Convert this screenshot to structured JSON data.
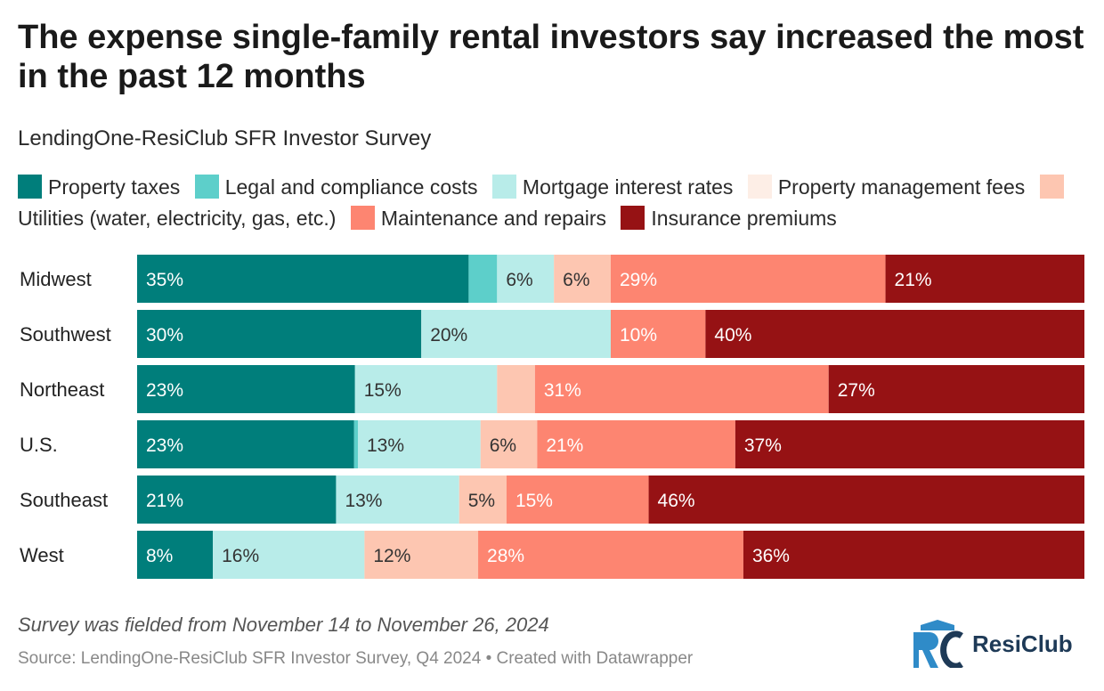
{
  "header": {
    "title": "The expense single-family rental investors say increased the most in the past 12 months",
    "subtitle": "LendingOne-ResiClub SFR Investor Survey"
  },
  "legend": [
    {
      "label": "Property taxes",
      "color": "#007e7b"
    },
    {
      "label": "Legal and compliance costs",
      "color": "#5dcfca"
    },
    {
      "label": "Mortgage interest rates",
      "color": "#b8ece9"
    },
    {
      "label": "Property management fees",
      "color": "#fdeee6"
    },
    {
      "label": "Utilities (water, electricity, gas, etc.)",
      "color": "#fdc6b1"
    },
    {
      "label": "Maintenance and repairs",
      "color": "#fd8571"
    },
    {
      "label": "Insurance premiums",
      "color": "#961214"
    }
  ],
  "chart_data": {
    "type": "bar",
    "orientation": "horizontal-stacked",
    "categories": [
      "Midwest",
      "Southwest",
      "Northeast",
      "U.S.",
      "Southeast",
      "West"
    ],
    "series": [
      {
        "name": "Property taxes",
        "values": [
          35,
          30,
          23,
          23,
          21,
          8
        ],
        "labels": [
          "35%",
          "30%",
          "23%",
          "23%",
          "21%",
          "8%"
        ]
      },
      {
        "name": "Legal and compliance costs",
        "values": [
          3,
          0,
          0,
          0.4,
          0,
          0
        ],
        "labels": [
          "",
          "",
          "",
          "",
          "",
          ""
        ]
      },
      {
        "name": "Mortgage interest rates",
        "values": [
          6,
          20,
          15,
          13,
          13,
          16
        ],
        "labels": [
          "6%",
          "20%",
          "15%",
          "13%",
          "13%",
          "16%"
        ]
      },
      {
        "name": "Property management fees",
        "values": [
          0,
          0,
          0,
          0,
          0,
          0
        ],
        "labels": [
          "",
          "",
          "",
          "",
          "",
          ""
        ]
      },
      {
        "name": "Utilities (water, electricity, gas, etc.)",
        "values": [
          6,
          0,
          4,
          6,
          5,
          12
        ],
        "labels": [
          "6%",
          "",
          "",
          "6%",
          "5%",
          "12%"
        ]
      },
      {
        "name": "Maintenance and repairs",
        "values": [
          29,
          10,
          31,
          21,
          15,
          28
        ],
        "labels": [
          "29%",
          "10%",
          "31%",
          "21%",
          "15%",
          "28%"
        ]
      },
      {
        "name": "Insurance premiums",
        "values": [
          21,
          40,
          27,
          37,
          46,
          36
        ],
        "labels": [
          "21%",
          "40%",
          "27%",
          "37%",
          "46%",
          "36%"
        ]
      }
    ],
    "xlim": [
      0,
      100
    ],
    "legend_position": "top"
  },
  "footer": {
    "note": "Survey was fielded from November 14 to November 26, 2024",
    "source": "Source: LendingOne-ResiClub SFR Investor Survey, Q4 2024 • Created with Datawrapper",
    "logo_text": "ResiClub"
  }
}
